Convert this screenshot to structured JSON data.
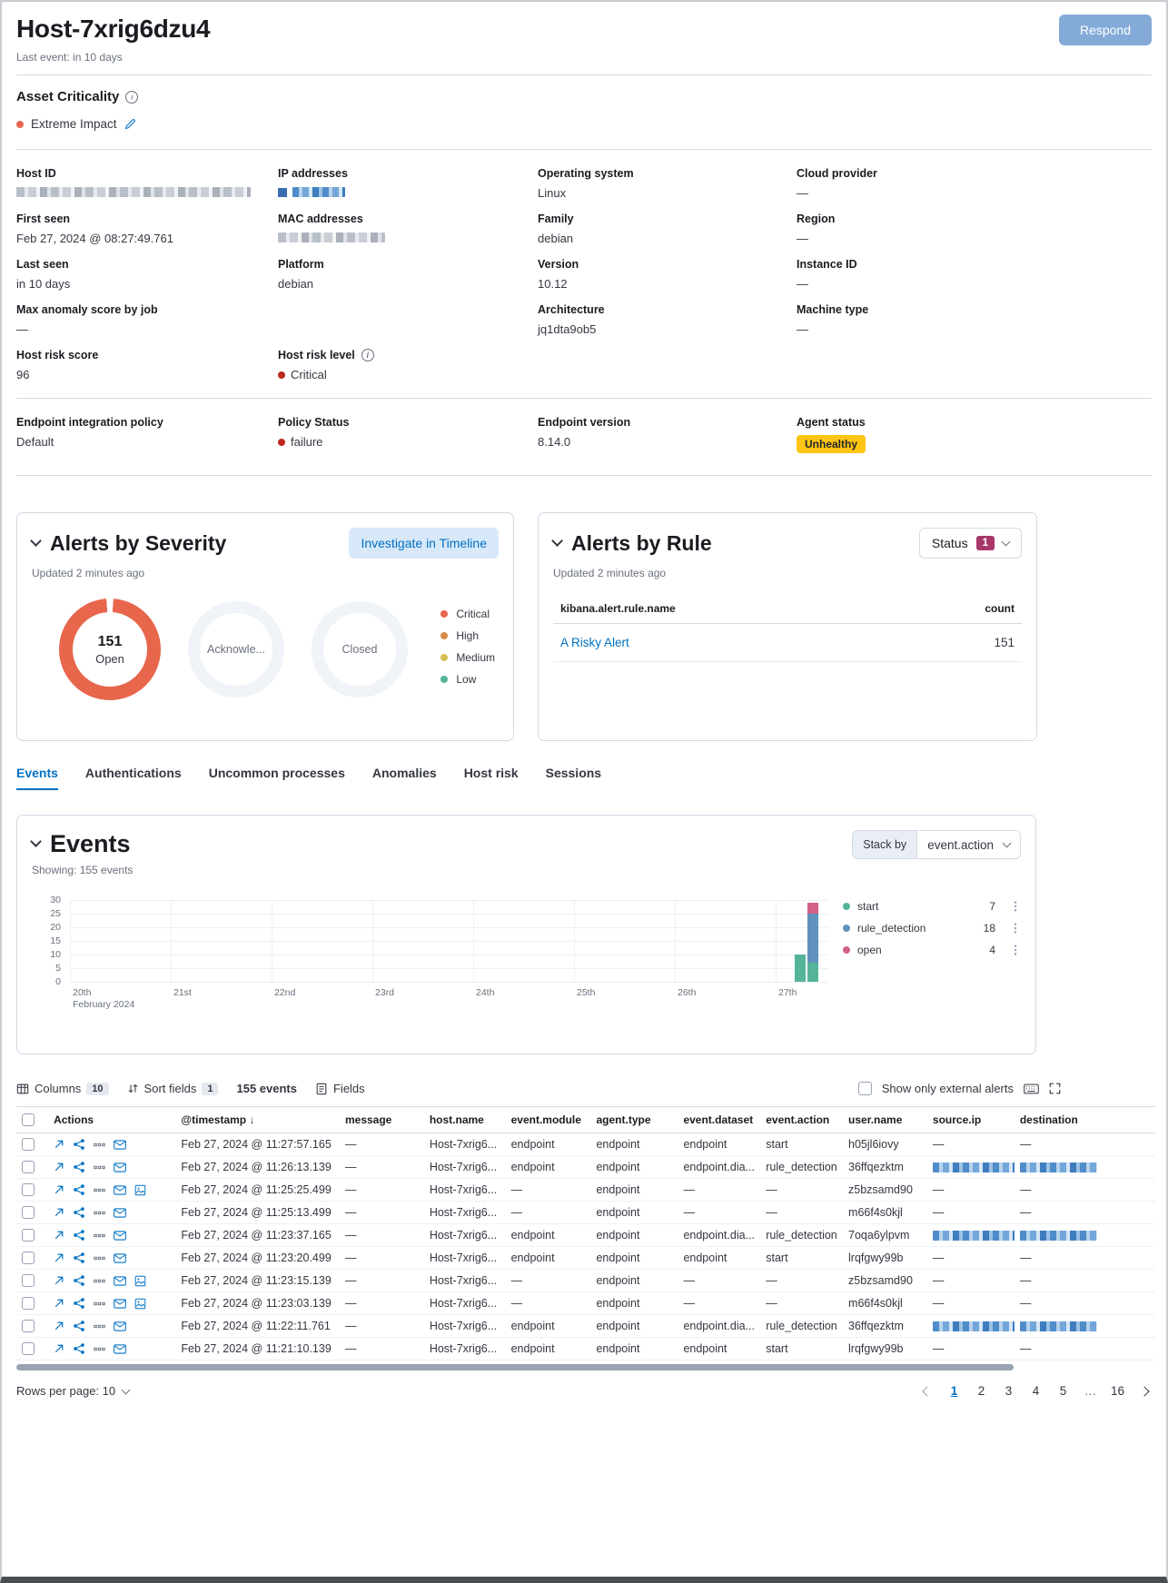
{
  "header": {
    "title": "Host-7xrig6dzu4",
    "last_event": "Last event: in 10 days",
    "respond": "Respond"
  },
  "asset_criticality": {
    "label": "Asset Criticality",
    "value": "Extreme Impact",
    "dot_color": "#E7664C"
  },
  "details": {
    "rows": [
      [
        {
          "label": "Host ID",
          "type": "redacted-gray"
        },
        {
          "label": "IP addresses",
          "type": "redacted-blue"
        },
        {
          "label": "Operating system",
          "value": "Linux"
        },
        {
          "label": "Cloud provider",
          "value": "—"
        }
      ],
      [
        {
          "label": "First seen",
          "value": "Feb 27, 2024 @ 08:27:49.761"
        },
        {
          "label": "MAC addresses",
          "type": "redacted-gray"
        },
        {
          "label": "Family",
          "value": "debian"
        },
        {
          "label": "Region",
          "value": "—"
        }
      ],
      [
        {
          "label": "Last seen",
          "value": "in 10 days"
        },
        {
          "label": "Platform",
          "value": "debian"
        },
        {
          "label": "Version",
          "value": "10.12"
        },
        {
          "label": "Instance ID",
          "value": "—"
        }
      ],
      [
        {
          "label": "Max anomaly score by job",
          "value": "—"
        },
        null,
        {
          "label": "Architecture",
          "value": "jq1dta9ob5"
        },
        {
          "label": "Machine type",
          "value": "—"
        }
      ],
      [
        {
          "label": "Host risk score",
          "value": "96"
        },
        {
          "label": "Host risk level",
          "value": "Critical",
          "dot": "#BD271E",
          "info": true
        },
        null,
        null
      ]
    ]
  },
  "endpoint": {
    "cells": [
      {
        "label": "Endpoint integration policy",
        "value": "Default"
      },
      {
        "label": "Policy Status",
        "value": "failure",
        "dot": "#BD271E"
      },
      {
        "label": "Endpoint version",
        "value": "8.14.0"
      },
      {
        "label": "Agent status",
        "value": "Unhealthy",
        "badge": "#FEC514"
      }
    ]
  },
  "alerts_by_severity": {
    "title": "Alerts by Severity",
    "button": "Investigate in Timeline",
    "updated": "Updated 2 minutes ago",
    "open_count": "151",
    "open_label": "Open",
    "ack_label": "Acknowle...",
    "closed_label": "Closed",
    "donut_color": "#E7664C",
    "legend": [
      {
        "label": "Critical",
        "color": "#E7664C"
      },
      {
        "label": "High",
        "color": "#DA8B45"
      },
      {
        "label": "Medium",
        "color": "#D6BF57"
      },
      {
        "label": "Low",
        "color": "#54B399"
      }
    ]
  },
  "alerts_by_rule": {
    "title": "Alerts by Rule",
    "status_label": "Status",
    "status_count": "1",
    "updated": "Updated 2 minutes ago",
    "col_name": "kibana.alert.rule.name",
    "col_count": "count",
    "rows": [
      {
        "name": "A Risky Alert",
        "count": "151"
      }
    ]
  },
  "tabs": {
    "items": [
      "Events",
      "Authentications",
      "Uncommon processes",
      "Anomalies",
      "Host risk",
      "Sessions"
    ],
    "active": 0
  },
  "events_panel": {
    "title": "Events",
    "showing": "Showing: 155 events",
    "stack_by": "Stack by",
    "stack_value": "event.action"
  },
  "chart_data": {
    "type": "bar",
    "stacked": true,
    "title": "Events",
    "x_ticks": [
      "20th",
      "21st",
      "22nd",
      "23rd",
      "24th",
      "25th",
      "26th",
      "27th"
    ],
    "x_sublabel": "February 2024",
    "y_ticks": [
      30,
      25,
      20,
      15,
      10,
      5,
      0
    ],
    "y_max": 30,
    "grid": true,
    "legend_position": "right",
    "legend": [
      {
        "name": "start",
        "color": "#54B399",
        "count": 7
      },
      {
        "name": "rule_detection",
        "color": "#6092C0",
        "count": 18
      },
      {
        "name": "open",
        "color": "#D36086",
        "count": 4
      }
    ],
    "bars": [
      {
        "x": "27th",
        "offset": 0,
        "segments": [
          {
            "name": "start",
            "color": "#54B399",
            "value": 10
          }
        ]
      },
      {
        "x": "27th",
        "offset": 1,
        "segments": [
          {
            "name": "start",
            "color": "#54B399",
            "value": 7
          },
          {
            "name": "rule_detection",
            "color": "#6092C0",
            "value": 18
          },
          {
            "name": "open",
            "color": "#D36086",
            "value": 4
          }
        ]
      }
    ]
  },
  "toolbar": {
    "columns": "Columns",
    "columns_count": "10",
    "sort": "Sort fields",
    "sort_count": "1",
    "events_count": "155 events",
    "fields": "Fields",
    "external": "Show only external alerts"
  },
  "table": {
    "headers": [
      "Actions",
      "@timestamp",
      "message",
      "host.name",
      "event.module",
      "agent.type",
      "event.dataset",
      "event.action",
      "user.name",
      "source.ip",
      "destination"
    ],
    "sorted_column": "@timestamp",
    "rows": [
      {
        "timestamp": "Feb 27, 2024 @ 11:27:57.165",
        "message": "—",
        "host": "Host-7xrig6...",
        "module": "endpoint",
        "agent": "endpoint",
        "dataset": "endpoint",
        "action": "start",
        "user": "h05jl6iovy",
        "source": "—",
        "destination": "—",
        "extra_icon": false
      },
      {
        "timestamp": "Feb 27, 2024 @ 11:26:13.139",
        "message": "—",
        "host": "Host-7xrig6...",
        "module": "endpoint",
        "agent": "endpoint",
        "dataset": "endpoint.dia...",
        "action": "rule_detection",
        "user": "36ffqezktm",
        "source": "redacted",
        "destination": "redacted",
        "extra_icon": false
      },
      {
        "timestamp": "Feb 27, 2024 @ 11:25:25.499",
        "message": "—",
        "host": "Host-7xrig6...",
        "module": "—",
        "agent": "endpoint",
        "dataset": "—",
        "action": "—",
        "user": "z5bzsamd90",
        "source": "—",
        "destination": "—",
        "extra_icon": true
      },
      {
        "timestamp": "Feb 27, 2024 @ 11:25:13.499",
        "message": "—",
        "host": "Host-7xrig6...",
        "module": "—",
        "agent": "endpoint",
        "dataset": "—",
        "action": "—",
        "user": "m66f4s0kjl",
        "source": "—",
        "destination": "—",
        "extra_icon": false
      },
      {
        "timestamp": "Feb 27, 2024 @ 11:23:37.165",
        "message": "—",
        "host": "Host-7xrig6...",
        "module": "endpoint",
        "agent": "endpoint",
        "dataset": "endpoint.dia...",
        "action": "rule_detection",
        "user": "7oqa6ylpvm",
        "source": "redacted",
        "destination": "redacted",
        "extra_icon": false
      },
      {
        "timestamp": "Feb 27, 2024 @ 11:23:20.499",
        "message": "—",
        "host": "Host-7xrig6...",
        "module": "endpoint",
        "agent": "endpoint",
        "dataset": "endpoint",
        "action": "start",
        "user": "lrqfgwy99b",
        "source": "—",
        "destination": "—",
        "extra_icon": false
      },
      {
        "timestamp": "Feb 27, 2024 @ 11:23:15.139",
        "message": "—",
        "host": "Host-7xrig6...",
        "module": "—",
        "agent": "endpoint",
        "dataset": "—",
        "action": "—",
        "user": "z5bzsamd90",
        "source": "—",
        "destination": "—",
        "extra_icon": true
      },
      {
        "timestamp": "Feb 27, 2024 @ 11:23:03.139",
        "message": "—",
        "host": "Host-7xrig6...",
        "module": "—",
        "agent": "endpoint",
        "dataset": "—",
        "action": "—",
        "user": "m66f4s0kjl",
        "source": "—",
        "destination": "—",
        "extra_icon": true
      },
      {
        "timestamp": "Feb 27, 2024 @ 11:22:11.761",
        "message": "—",
        "host": "Host-7xrig6...",
        "module": "endpoint",
        "agent": "endpoint",
        "dataset": "endpoint.dia...",
        "action": "rule_detection",
        "user": "36ffqezktm",
        "source": "redacted",
        "destination": "redacted",
        "extra_icon": false
      },
      {
        "timestamp": "Feb 27, 2024 @ 11:21:10.139",
        "message": "—",
        "host": "Host-7xrig6...",
        "module": "endpoint",
        "agent": "endpoint",
        "dataset": "endpoint",
        "action": "start",
        "user": "lrqfgwy99b",
        "source": "—",
        "destination": "—",
        "extra_icon": false
      }
    ]
  },
  "pagination": {
    "rows_per_page": "Rows per page: 10",
    "pages": [
      "1",
      "2",
      "3",
      "4",
      "5",
      "…",
      "16"
    ],
    "active_page": "1"
  },
  "colors": {
    "link_blue": "#0071C2",
    "danger_red": "#BD271E",
    "warning_yellow": "#FEC514",
    "donut_open": "#E7664C",
    "status_badge_pink": "#A8376A",
    "respond_button": "#84ABD8"
  }
}
